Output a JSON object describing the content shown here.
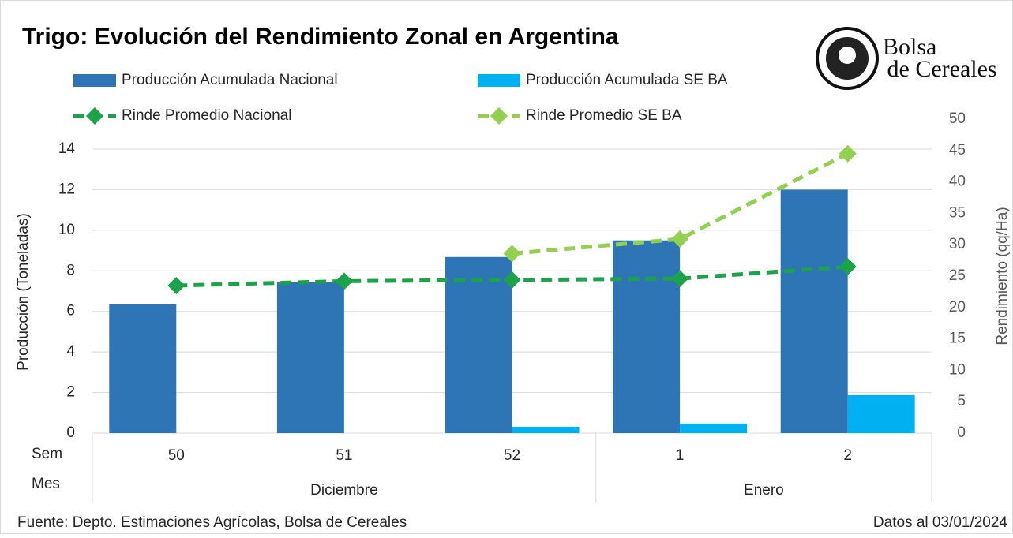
{
  "chart_data": {
    "type": "bar",
    "title": "Trigo: Evolución del Rendimiento Zonal en Argentina",
    "brand": "Bolsa de Cereales",
    "ylabel": "Producción (Toneladas)",
    "y2label": "Rendimiento (qq/Ha)",
    "row_labels": [
      "Sem",
      "Mes"
    ],
    "categories": [
      "50",
      "51",
      "52",
      "1",
      "2"
    ],
    "months": [
      "Diciembre",
      "Diciembre",
      "Diciembre",
      "Enero",
      "Enero"
    ],
    "series": [
      {
        "name": "Producción Acumulada Nacional",
        "type": "bar",
        "color": "#2e75b6",
        "values": [
          6.34,
          7.43,
          8.68,
          9.5,
          12.0
        ]
      },
      {
        "name": "Producción Acumulada SE BA",
        "type": "bar",
        "color": "#00b0f0",
        "values": [
          null,
          null,
          0.31,
          0.47,
          1.87
        ]
      },
      {
        "name": "Rinde Promedio Nacional",
        "type": "line",
        "axis": "y2",
        "color": "#1ba34a",
        "values": [
          23.5,
          24.2,
          24.4,
          24.6,
          26.5
        ]
      },
      {
        "name": "Rinde Promedio SE BA",
        "type": "line",
        "axis": "y2",
        "color": "#92d050",
        "values": [
          null,
          null,
          28.6,
          30.9,
          44.5
        ]
      }
    ],
    "ylim": [
      0,
      14
    ],
    "yticks": [
      0,
      2,
      4,
      6,
      8,
      10,
      12,
      14
    ],
    "y2lim": [
      0,
      50
    ],
    "y2ticks": [
      0,
      5,
      10,
      15,
      20,
      25,
      30,
      35,
      40,
      45,
      50
    ],
    "grid": true,
    "source": "Fuente: Depto. Estimaciones Agrícolas, Bolsa de Cereales",
    "date_note": "Datos al 03/01/2024"
  }
}
